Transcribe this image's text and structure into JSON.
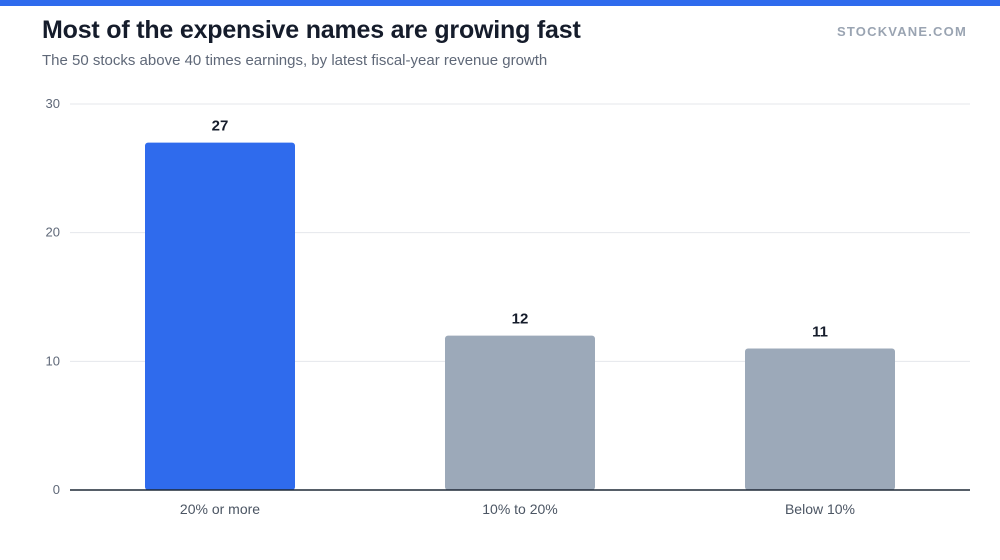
{
  "header": {
    "title": "Most of the expensive names are growing fast",
    "subtitle": "The 50 stocks above 40 times earnings, by latest fiscal-year revenue growth",
    "brand": "STOCKVANE.COM"
  },
  "colors": {
    "accent": "#2f6bed",
    "highlight_bar": "#2f6bed",
    "muted_bar": "#9ca9b9",
    "gridline": "#e5e7eb",
    "axis": "#1f2937"
  },
  "chart_data": {
    "type": "bar",
    "categories": [
      "20% or more",
      "10% to 20%",
      "Below 10%"
    ],
    "values": [
      27,
      12,
      11
    ],
    "highlighted": [
      true,
      false,
      false
    ],
    "ylim": [
      0,
      30
    ],
    "yticks": [
      0,
      10,
      20,
      30
    ],
    "grid": true,
    "data_labels": true,
    "xlabel": "",
    "ylabel": ""
  }
}
